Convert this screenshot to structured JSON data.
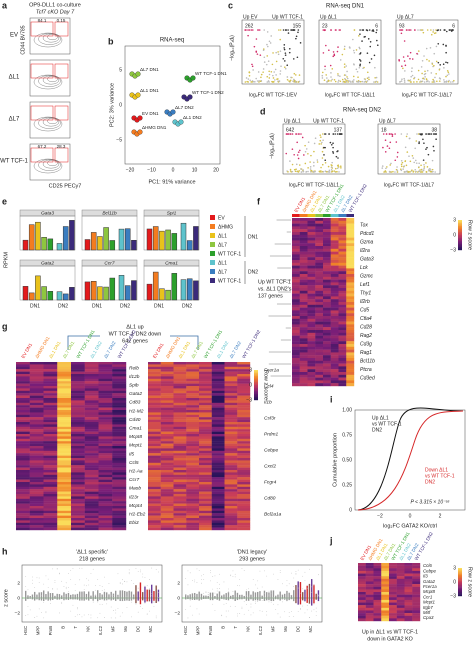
{
  "panel_a": {
    "label": "a",
    "title": "OP9-DLL1 co-culture",
    "subtitle": "Tcf7 cKO Day 7",
    "y_axis": "CD44 BV785",
    "x_axis": "CD25 PECy7",
    "rows": [
      {
        "label": "EV",
        "gates": [
          "84.1",
          "0.15"
        ]
      },
      {
        "label": "ΔL1",
        "gates": []
      },
      {
        "label": "ΔL7",
        "gates": []
      },
      {
        "label": "WT TCF-1",
        "gates": [
          "67.2",
          "28.3"
        ]
      }
    ]
  },
  "panel_b": {
    "label": "b",
    "title": "RNA-seq",
    "x_axis": "PC1: 91% variance",
    "y_axis": "PC2: 3% variance",
    "xticks": [
      "−20",
      "−10",
      "0",
      "10",
      "20"
    ],
    "yticks": [
      "5",
      "0",
      "−5"
    ],
    "points": [
      "ΔL7 DN1",
      "ΔL1 DN1",
      "WT TCF-1 DN1",
      "EV DN1",
      "ΔHMG DN1",
      "ΔL7 DN2",
      "ΔL1 DN2",
      "WT TCF-1 DN2"
    ]
  },
  "panel_c": {
    "label": "c",
    "title": "RNA-seq DN1",
    "y_axis": "−log₁₀(Pₐdⱼ)",
    "plots": [
      {
        "up_left": "Up EV",
        "up_right": "Up WT TCF-1",
        "n_left": "262",
        "n_right": "155",
        "x_axis": "log₂FC WT TCF-1/EV"
      },
      {
        "up_left": "Up ΔL1",
        "n_left": "23",
        "n_right": "6",
        "x_axis": "log₂FC WT TCF-1/ΔL1"
      },
      {
        "up_left": "Up ΔL7",
        "n_left": "93",
        "n_right": "6",
        "x_axis": "log₂FC WT TCF-1/ΔL7"
      }
    ]
  },
  "panel_d": {
    "label": "d",
    "title": "RNA-seq DN2",
    "y_axis": "−log₁₀(Pₐdⱼ)",
    "plots": [
      {
        "up_left": "Up ΔL1",
        "up_right": "Up WT TCF-1",
        "n_left": "642",
        "n_right": "137",
        "x_axis": "log₂FC WT TCF-1/ΔL1"
      },
      {
        "up_left": "Up ΔL7",
        "n_left": "18",
        "n_right": "38",
        "x_axis": "log₂FC WT TCF-1/ΔL7"
      }
    ]
  },
  "panel_e": {
    "label": "e",
    "y_axis": "RPKM",
    "genes": [
      "Gata3",
      "Bcl11b",
      "Spi1",
      "Gata2",
      "Ccr7",
      "Cma1"
    ],
    "x_labels": [
      "DN1",
      "DN2"
    ],
    "legend": [
      {
        "name": "EV",
        "color": "#e31a1c"
      },
      {
        "name": "ΔHMG",
        "color": "#f47c20"
      },
      {
        "name": "ΔL1",
        "color": "#e9c21b"
      },
      {
        "name": "ΔL7",
        "color": "#8dc63f"
      },
      {
        "name": "WT TCF-1",
        "color": "#2ca02c"
      },
      {
        "name": "ΔL1",
        "color": "#5ec3cc"
      },
      {
        "name": "ΔL7",
        "color": "#3a7dc0"
      },
      {
        "name": "WT TCF-1",
        "color": "#3b2a7a"
      }
    ],
    "groups": [
      "DN1",
      "DN2"
    ]
  },
  "panel_f": {
    "label": "f",
    "columns": [
      "EV DN1",
      "ΔHMG DN1",
      "ΔL1 DN1",
      "ΔL7 DN1",
      "WT TCF-1 DN1",
      "ΔL1 DN2",
      "ΔL7 DN2",
      "WT TCF-1 DN2"
    ],
    "side_text": [
      "Up WT TCF-1",
      "vs. ΔL1 DN2's",
      "137 genes"
    ],
    "genes": [
      "Tox",
      "Pdcd1",
      "Gzma",
      "Il2ra",
      "Gata3",
      "Lck",
      "Gzmc",
      "Lef1",
      "Thy1",
      "Il2rb",
      "Cd5",
      "Ctla4",
      "Cd28",
      "Rag2",
      "Cd3g",
      "Rag1",
      "Bcl11b",
      "Ptcra",
      "Cd3ed"
    ],
    "scale_title": "Row z score",
    "scale_ticks": [
      "3",
      "0",
      "−3"
    ]
  },
  "panel_g": {
    "label": "g",
    "title_lines": [
      "ΔL1 up",
      "WT TCF-1 DN2 down",
      "642 genes"
    ],
    "columns": [
      "EV DN1",
      "ΔHMG DN1",
      "ΔL1 DN1",
      "ΔL7 DN1",
      "WT TCF-1 DN1",
      "ΔL1 DN2",
      "ΔL7 DN2",
      "WT TCF-1 DN2"
    ],
    "left_genes": [
      "Relb",
      "Il12b",
      "Spib",
      "Gata2",
      "Cd83",
      "H2-M2",
      "Cd40",
      "Cma1",
      "Mcpt8",
      "Mcpt1",
      "Il5",
      "Ccl5",
      "H2-Aa",
      "Ccr7",
      "Maob",
      "Il23r",
      "Mcpt4",
      "H2-Eb2",
      "Ebi3"
    ],
    "right_genes": [
      "Fcer1a",
      "Ccl4",
      "Il1b",
      "Csf3r",
      "Prdm1",
      "Cebpe",
      "Cxcl2",
      "Fcgr4",
      "Cd80",
      "Bcl2a1a"
    ],
    "scale_title": "Row z score",
    "scale_ticks": [
      "3",
      "0",
      "−3"
    ]
  },
  "panel_h": {
    "label": "h",
    "plots": [
      {
        "title": "'ΔL1 specific'",
        "subtitle": "218 genes"
      },
      {
        "title": "'DN1 legacy'",
        "subtitle": "293 genes"
      }
    ],
    "y_axis": "z score",
    "yticks": [
      "2",
      "0",
      "−2"
    ],
    "x_labels": [
      "HSC",
      "MPP",
      "ProB",
      "B",
      "T",
      "NK",
      "ILC2",
      "MF",
      "Mo",
      "DC",
      "MC"
    ]
  },
  "panel_i": {
    "label": "i",
    "black_label": [
      "Up ΔL1",
      "vs WT TCF-1",
      "DN2"
    ],
    "red_label": [
      "Down ΔL1",
      "vs WT TCF-1",
      "DN2"
    ],
    "p_value": "P < 3.315 × 10⁻¹⁶",
    "x_axis": "log₂FC GATA2 KO/ctrl",
    "y_axis": "Cumulative proportion",
    "xticks": [
      "−2",
      "0",
      "2"
    ],
    "yticks": [
      "1.00",
      "0.75",
      "0.50",
      "0.25",
      "0"
    ]
  },
  "panel_j": {
    "label": "j",
    "columns": [
      "EV DN1",
      "ΔHMG DN1",
      "ΔL1 DN1",
      "ΔL7 DN1",
      "WT TCF-1 DN1",
      "ΔL1 DN2",
      "ΔL7 DN2",
      "WT TCF-1 DN2"
    ],
    "genes": [
      "Ccl6",
      "Cebpe",
      "Il3",
      "Gata2",
      "Fcer1a",
      "Mcpt8",
      "Ccr1",
      "Mcpt1",
      "Itgb7",
      "Mitf",
      "Cpa3"
    ],
    "caption": [
      "Up in ΔL1 vs WT TCF-1",
      "down in GATA2 KO"
    ],
    "scale_title": "Row z score",
    "scale_ticks": [
      "3",
      "0",
      "−3"
    ]
  }
}
